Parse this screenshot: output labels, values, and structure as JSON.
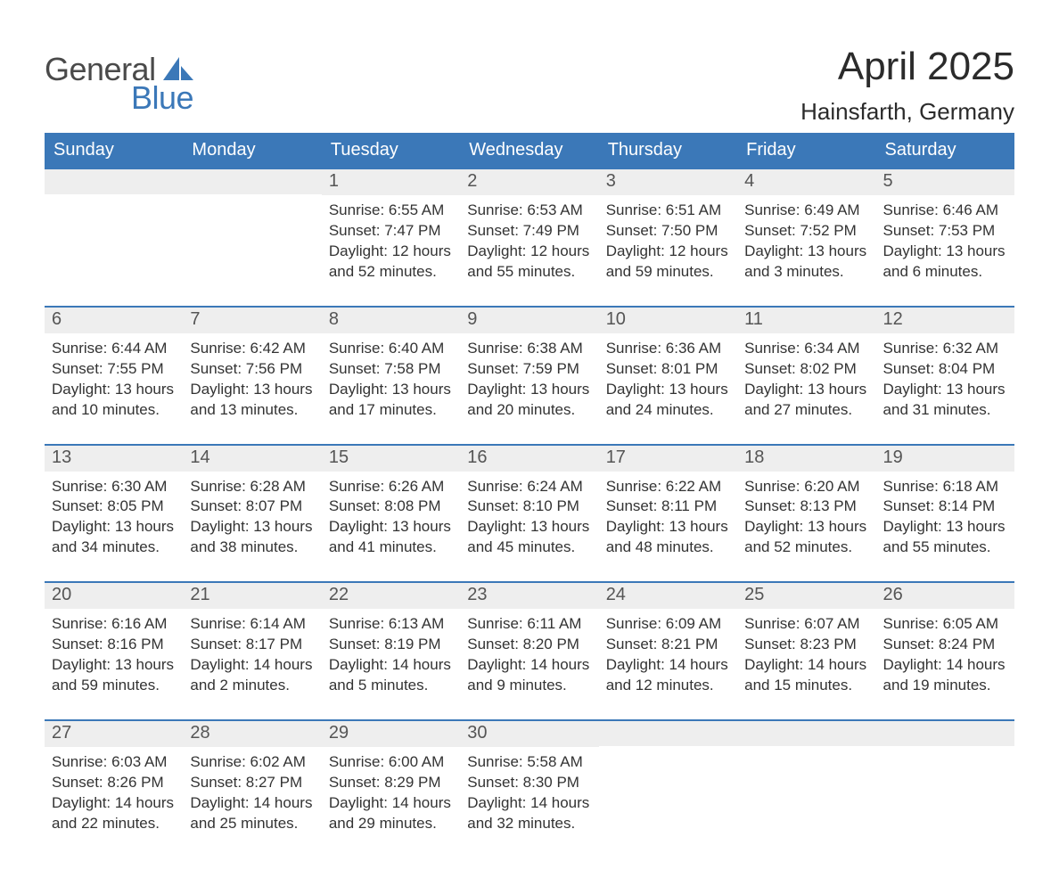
{
  "logo": {
    "general": "General",
    "blue": "Blue",
    "sail_color": "#3b78b8"
  },
  "title": "April 2025",
  "location": "Hainsfarth, Germany",
  "styling": {
    "header_bg": "#3b78b8",
    "header_text": "#ffffff",
    "daynum_bg": "#eeeeee",
    "week_divider": "#3b78b8",
    "body_text": "#333333",
    "page_bg": "#ffffff",
    "title_fontsize": 44,
    "location_fontsize": 26,
    "weekday_fontsize": 20,
    "daynum_fontsize": 20,
    "body_fontsize": 17
  },
  "weekdays": [
    "Sunday",
    "Monday",
    "Tuesday",
    "Wednesday",
    "Thursday",
    "Friday",
    "Saturday"
  ],
  "weeks": [
    [
      null,
      null,
      {
        "n": "1",
        "sunrise": "Sunrise: 6:55 AM",
        "sunset": "Sunset: 7:47 PM",
        "day1": "Daylight: 12 hours",
        "day2": "and 52 minutes."
      },
      {
        "n": "2",
        "sunrise": "Sunrise: 6:53 AM",
        "sunset": "Sunset: 7:49 PM",
        "day1": "Daylight: 12 hours",
        "day2": "and 55 minutes."
      },
      {
        "n": "3",
        "sunrise": "Sunrise: 6:51 AM",
        "sunset": "Sunset: 7:50 PM",
        "day1": "Daylight: 12 hours",
        "day2": "and 59 minutes."
      },
      {
        "n": "4",
        "sunrise": "Sunrise: 6:49 AM",
        "sunset": "Sunset: 7:52 PM",
        "day1": "Daylight: 13 hours",
        "day2": "and 3 minutes."
      },
      {
        "n": "5",
        "sunrise": "Sunrise: 6:46 AM",
        "sunset": "Sunset: 7:53 PM",
        "day1": "Daylight: 13 hours",
        "day2": "and 6 minutes."
      }
    ],
    [
      {
        "n": "6",
        "sunrise": "Sunrise: 6:44 AM",
        "sunset": "Sunset: 7:55 PM",
        "day1": "Daylight: 13 hours",
        "day2": "and 10 minutes."
      },
      {
        "n": "7",
        "sunrise": "Sunrise: 6:42 AM",
        "sunset": "Sunset: 7:56 PM",
        "day1": "Daylight: 13 hours",
        "day2": "and 13 minutes."
      },
      {
        "n": "8",
        "sunrise": "Sunrise: 6:40 AM",
        "sunset": "Sunset: 7:58 PM",
        "day1": "Daylight: 13 hours",
        "day2": "and 17 minutes."
      },
      {
        "n": "9",
        "sunrise": "Sunrise: 6:38 AM",
        "sunset": "Sunset: 7:59 PM",
        "day1": "Daylight: 13 hours",
        "day2": "and 20 minutes."
      },
      {
        "n": "10",
        "sunrise": "Sunrise: 6:36 AM",
        "sunset": "Sunset: 8:01 PM",
        "day1": "Daylight: 13 hours",
        "day2": "and 24 minutes."
      },
      {
        "n": "11",
        "sunrise": "Sunrise: 6:34 AM",
        "sunset": "Sunset: 8:02 PM",
        "day1": "Daylight: 13 hours",
        "day2": "and 27 minutes."
      },
      {
        "n": "12",
        "sunrise": "Sunrise: 6:32 AM",
        "sunset": "Sunset: 8:04 PM",
        "day1": "Daylight: 13 hours",
        "day2": "and 31 minutes."
      }
    ],
    [
      {
        "n": "13",
        "sunrise": "Sunrise: 6:30 AM",
        "sunset": "Sunset: 8:05 PM",
        "day1": "Daylight: 13 hours",
        "day2": "and 34 minutes."
      },
      {
        "n": "14",
        "sunrise": "Sunrise: 6:28 AM",
        "sunset": "Sunset: 8:07 PM",
        "day1": "Daylight: 13 hours",
        "day2": "and 38 minutes."
      },
      {
        "n": "15",
        "sunrise": "Sunrise: 6:26 AM",
        "sunset": "Sunset: 8:08 PM",
        "day1": "Daylight: 13 hours",
        "day2": "and 41 minutes."
      },
      {
        "n": "16",
        "sunrise": "Sunrise: 6:24 AM",
        "sunset": "Sunset: 8:10 PM",
        "day1": "Daylight: 13 hours",
        "day2": "and 45 minutes."
      },
      {
        "n": "17",
        "sunrise": "Sunrise: 6:22 AM",
        "sunset": "Sunset: 8:11 PM",
        "day1": "Daylight: 13 hours",
        "day2": "and 48 minutes."
      },
      {
        "n": "18",
        "sunrise": "Sunrise: 6:20 AM",
        "sunset": "Sunset: 8:13 PM",
        "day1": "Daylight: 13 hours",
        "day2": "and 52 minutes."
      },
      {
        "n": "19",
        "sunrise": "Sunrise: 6:18 AM",
        "sunset": "Sunset: 8:14 PM",
        "day1": "Daylight: 13 hours",
        "day2": "and 55 minutes."
      }
    ],
    [
      {
        "n": "20",
        "sunrise": "Sunrise: 6:16 AM",
        "sunset": "Sunset: 8:16 PM",
        "day1": "Daylight: 13 hours",
        "day2": "and 59 minutes."
      },
      {
        "n": "21",
        "sunrise": "Sunrise: 6:14 AM",
        "sunset": "Sunset: 8:17 PM",
        "day1": "Daylight: 14 hours",
        "day2": "and 2 minutes."
      },
      {
        "n": "22",
        "sunrise": "Sunrise: 6:13 AM",
        "sunset": "Sunset: 8:19 PM",
        "day1": "Daylight: 14 hours",
        "day2": "and 5 minutes."
      },
      {
        "n": "23",
        "sunrise": "Sunrise: 6:11 AM",
        "sunset": "Sunset: 8:20 PM",
        "day1": "Daylight: 14 hours",
        "day2": "and 9 minutes."
      },
      {
        "n": "24",
        "sunrise": "Sunrise: 6:09 AM",
        "sunset": "Sunset: 8:21 PM",
        "day1": "Daylight: 14 hours",
        "day2": "and 12 minutes."
      },
      {
        "n": "25",
        "sunrise": "Sunrise: 6:07 AM",
        "sunset": "Sunset: 8:23 PM",
        "day1": "Daylight: 14 hours",
        "day2": "and 15 minutes."
      },
      {
        "n": "26",
        "sunrise": "Sunrise: 6:05 AM",
        "sunset": "Sunset: 8:24 PM",
        "day1": "Daylight: 14 hours",
        "day2": "and 19 minutes."
      }
    ],
    [
      {
        "n": "27",
        "sunrise": "Sunrise: 6:03 AM",
        "sunset": "Sunset: 8:26 PM",
        "day1": "Daylight: 14 hours",
        "day2": "and 22 minutes."
      },
      {
        "n": "28",
        "sunrise": "Sunrise: 6:02 AM",
        "sunset": "Sunset: 8:27 PM",
        "day1": "Daylight: 14 hours",
        "day2": "and 25 minutes."
      },
      {
        "n": "29",
        "sunrise": "Sunrise: 6:00 AM",
        "sunset": "Sunset: 8:29 PM",
        "day1": "Daylight: 14 hours",
        "day2": "and 29 minutes."
      },
      {
        "n": "30",
        "sunrise": "Sunrise: 5:58 AM",
        "sunset": "Sunset: 8:30 PM",
        "day1": "Daylight: 14 hours",
        "day2": "and 32 minutes."
      },
      null,
      null,
      null
    ]
  ]
}
